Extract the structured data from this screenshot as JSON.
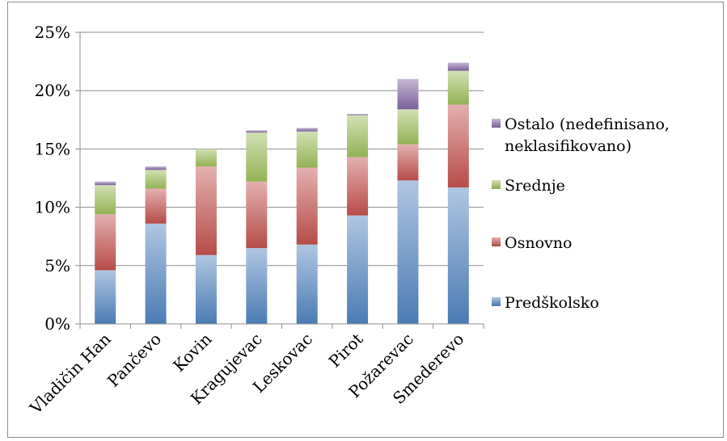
{
  "chart_data": {
    "type": "bar",
    "stacked": true,
    "categories": [
      "Vladičin Han",
      "Pančevo",
      "Kovin",
      "Kragujevac",
      "Leskovac",
      "Pirot",
      "Požarevac",
      "Smederevo"
    ],
    "series": [
      {
        "name": "Predškolsko",
        "values": [
          4.6,
          8.6,
          5.9,
          6.5,
          6.8,
          9.3,
          12.3,
          11.7
        ],
        "color": "#4f81bd"
      },
      {
        "name": "Osnovno",
        "values": [
          4.8,
          3.0,
          7.6,
          5.7,
          6.6,
          5.0,
          3.1,
          7.1
        ],
        "color": "#c0504d"
      },
      {
        "name": "Srednje",
        "values": [
          2.5,
          1.6,
          1.5,
          4.2,
          3.1,
          3.6,
          3.0,
          2.9
        ],
        "color": "#9bbb59"
      },
      {
        "name": "Ostalo (nedefinisano, neklasifikovano)",
        "legend_lines": [
          "Ostalo (nedefinisano,",
          "neklasifikovano)"
        ],
        "values": [
          0.3,
          0.3,
          0.0,
          0.2,
          0.3,
          0.1,
          2.6,
          0.7
        ],
        "color": "#8064a2"
      }
    ],
    "ylim": [
      0,
      25
    ],
    "yticks": [
      0,
      5,
      10,
      15,
      20,
      25
    ],
    "ytick_labels": [
      "0%",
      "5%",
      "10%",
      "15%",
      "20%",
      "25%"
    ],
    "grid": true,
    "legend_position": "right",
    "title": "",
    "xlabel": "",
    "ylabel": ""
  }
}
